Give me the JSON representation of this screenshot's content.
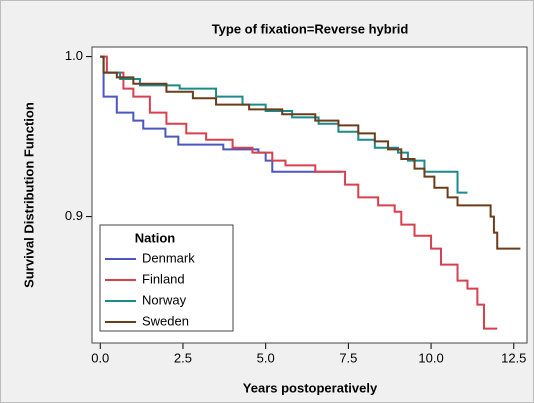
{
  "chart_data": {
    "type": "step",
    "title": "Type of fixation=Reverse hybrid",
    "xlabel": "Years postoperatively",
    "ylabel": "Survival Distribution Function",
    "xlim": [
      -0.25,
      12.9
    ],
    "ylim": [
      0.821,
      1.006
    ],
    "xticks": [
      {
        "value": 0,
        "label": "0.0"
      },
      2.5,
      {
        "value": 5,
        "label": "5.0"
      },
      7.5,
      {
        "value": 10,
        "label": "10.0"
      },
      12.5
    ],
    "yticks": [
      0.9,
      {
        "value": 1,
        "label": "1.0"
      }
    ],
    "legend_title": "Nation",
    "legend_position": "lower left",
    "series": [
      {
        "name": "Denmark",
        "color": "#4a57c0",
        "x": [
          0,
          0.1,
          0.5,
          1.0,
          1.3,
          1.97,
          2.36,
          3.72,
          4.78,
          5.0,
          5.2,
          7.3
        ],
        "values": [
          1.0,
          0.975,
          0.965,
          0.96,
          0.955,
          0.95,
          0.945,
          0.942,
          0.94,
          0.935,
          0.928,
          0.928
        ]
      },
      {
        "name": "Finland",
        "color": "#d8404e",
        "x": [
          0,
          0.2,
          0.7,
          1.0,
          1.5,
          2.0,
          2.6,
          3.2,
          4.0,
          4.6,
          5.2,
          5.6,
          6.5,
          7.4,
          7.8,
          8.4,
          8.9,
          9.1,
          9.5,
          10.0,
          10.3,
          10.8,
          11.1,
          11.4,
          11.6,
          12.0
        ],
        "values": [
          1.0,
          0.99,
          0.98,
          0.975,
          0.965,
          0.958,
          0.952,
          0.948,
          0.943,
          0.94,
          0.935,
          0.932,
          0.928,
          0.92,
          0.912,
          0.907,
          0.903,
          0.895,
          0.888,
          0.88,
          0.87,
          0.86,
          0.855,
          0.845,
          0.83,
          0.83
        ]
      },
      {
        "name": "Norway",
        "color": "#1c8a8a",
        "x": [
          0,
          0.1,
          0.6,
          1.2,
          2.4,
          3.5,
          4.3,
          5.0,
          5.8,
          6.6,
          7.2,
          7.8,
          8.3,
          9.0,
          9.3,
          9.8,
          10.8,
          11.1
        ],
        "values": [
          1.0,
          0.99,
          0.986,
          0.982,
          0.98,
          0.975,
          0.97,
          0.966,
          0.962,
          0.958,
          0.953,
          0.948,
          0.943,
          0.94,
          0.935,
          0.928,
          0.915,
          0.915
        ]
      },
      {
        "name": "Sweden",
        "color": "#6b3d1a",
        "x": [
          0,
          0.1,
          0.5,
          1.0,
          2.0,
          2.8,
          3.5,
          4.5,
          5.5,
          6.5,
          7.2,
          7.8,
          8.3,
          8.7,
          9.1,
          9.5,
          9.8,
          10.1,
          10.5,
          10.8,
          11.8,
          11.9,
          12.0,
          12.7
        ],
        "values": [
          1.0,
          0.99,
          0.987,
          0.983,
          0.978,
          0.974,
          0.97,
          0.967,
          0.964,
          0.96,
          0.957,
          0.952,
          0.947,
          0.942,
          0.936,
          0.93,
          0.925,
          0.918,
          0.912,
          0.907,
          0.9,
          0.89,
          0.88,
          0.88
        ]
      }
    ]
  }
}
